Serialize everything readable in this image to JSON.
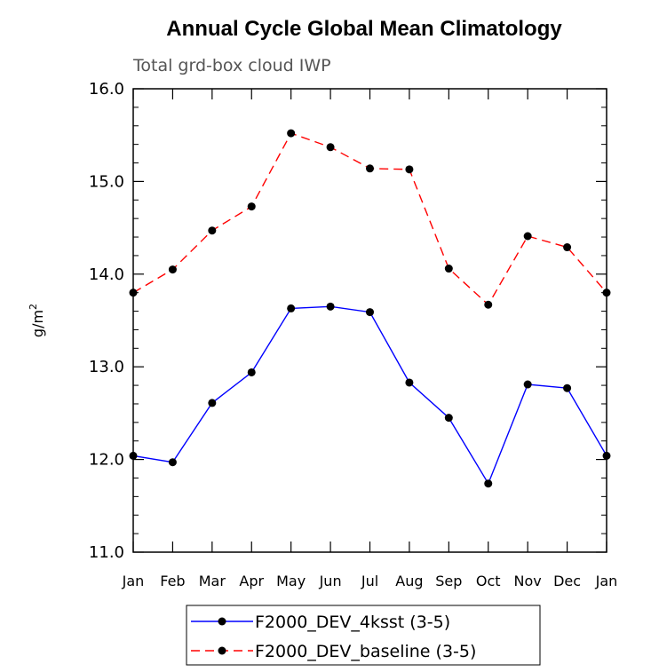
{
  "chart_data": {
    "type": "line",
    "title": "Annual Cycle Global Mean Climatology",
    "subtitle": "Total grd-box cloud IWP",
    "ylabel": "g/m",
    "ylabel_sup": "2",
    "ylim": [
      11.0,
      16.0
    ],
    "yticks": [
      "11.0",
      "12.0",
      "13.0",
      "14.0",
      "15.0",
      "16.0"
    ],
    "yticks_values": [
      11,
      12,
      13,
      14,
      15,
      16
    ],
    "categories": [
      "Jan",
      "Feb",
      "Mar",
      "Apr",
      "May",
      "Jun",
      "Jul",
      "Aug",
      "Sep",
      "Oct",
      "Nov",
      "Dec",
      "Jan"
    ],
    "grid": false,
    "legend_position": "bottom",
    "series": [
      {
        "name": "F2000_DEV_4ksst (3-5)",
        "color": "#0000ff",
        "dash": "solid",
        "values": [
          12.04,
          11.97,
          12.61,
          12.94,
          13.63,
          13.65,
          13.59,
          12.83,
          12.45,
          11.74,
          12.81,
          12.77,
          12.04
        ]
      },
      {
        "name": "F2000_DEV_baseline (3-5)",
        "color": "#ff0000",
        "dash": "dashed",
        "values": [
          13.8,
          14.05,
          14.47,
          14.73,
          15.52,
          15.37,
          15.14,
          15.13,
          14.06,
          13.67,
          14.41,
          14.29,
          13.8
        ]
      }
    ]
  }
}
